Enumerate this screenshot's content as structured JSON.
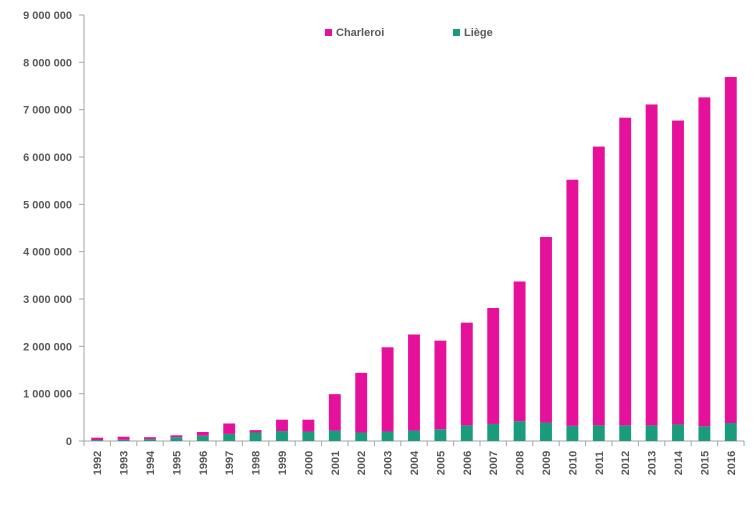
{
  "chart_data": {
    "type": "bar",
    "stacked": true,
    "categories": [
      "1992",
      "1993",
      "1994",
      "1995",
      "1996",
      "1997",
      "1998",
      "1999",
      "2000",
      "2001",
      "2002",
      "2003",
      "2004",
      "2005",
      "2006",
      "2007",
      "2008",
      "2009",
      "2010",
      "2011",
      "2012",
      "2013",
      "2014",
      "2015",
      "2016"
    ],
    "series": [
      {
        "name": "Liège",
        "color": "#1a9c7c",
        "values": [
          20000,
          25000,
          40000,
          80000,
          110000,
          150000,
          180000,
          210000,
          200000,
          220000,
          180000,
          200000,
          220000,
          250000,
          330000,
          360000,
          420000,
          390000,
          320000,
          330000,
          330000,
          330000,
          350000,
          310000,
          380000
        ]
      },
      {
        "name": "Charleroi",
        "color": "#e6119a",
        "values": [
          50000,
          65000,
          40000,
          40000,
          80000,
          220000,
          50000,
          240000,
          250000,
          770000,
          1260000,
          1780000,
          2030000,
          1870000,
          2170000,
          2450000,
          2950000,
          3920000,
          5200000,
          5890000,
          6500000,
          6780000,
          6420000,
          6950000,
          7310000
        ]
      }
    ],
    "ylim": [
      0,
      9000000
    ],
    "y_ticks": [
      0,
      1000000,
      2000000,
      3000000,
      4000000,
      5000000,
      6000000,
      7000000,
      8000000,
      9000000
    ],
    "y_tick_labels": [
      "0",
      "1 000 000",
      "2 000 000",
      "3 000 000",
      "4 000 000",
      "5 000 000",
      "6 000 000",
      "7 000 000",
      "8 000 000",
      "9 000 000"
    ],
    "grid": false,
    "legend_position": "top-center",
    "title": "",
    "xlabel": "",
    "ylabel": ""
  }
}
